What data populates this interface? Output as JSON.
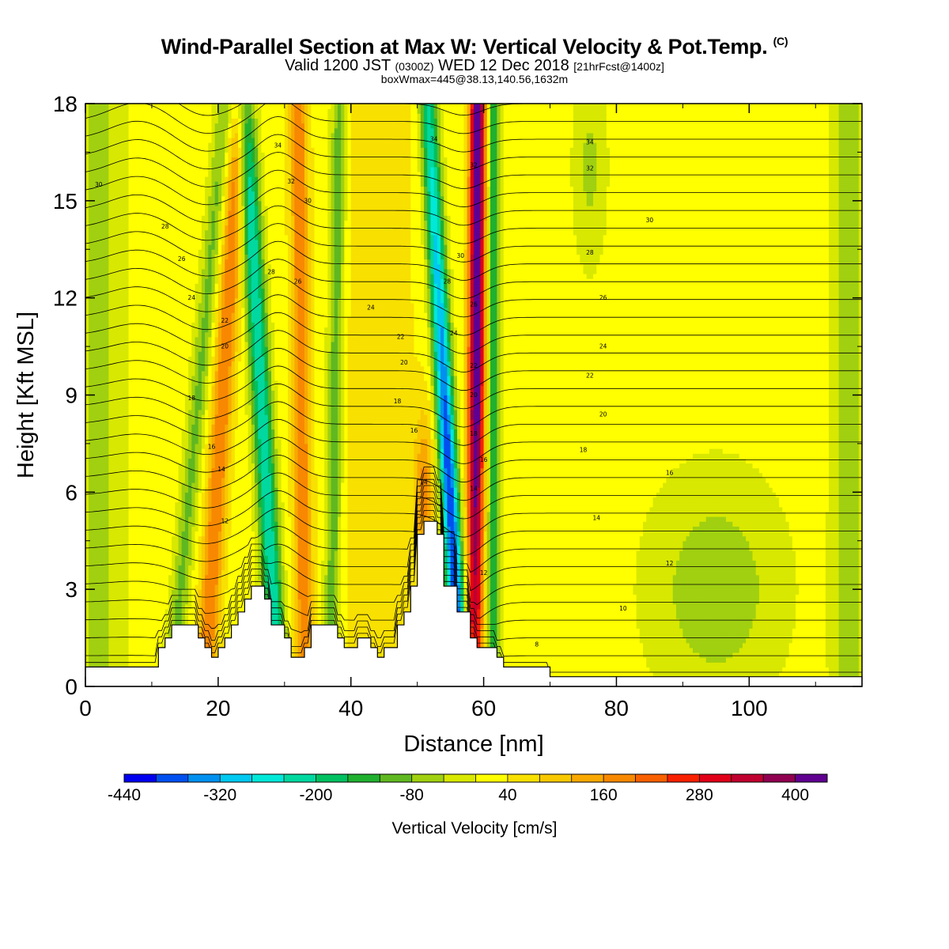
{
  "header": {
    "title": "Wind-Parallel Section at Max W: Vertical Velocity & Pot.Temp.",
    "title_mark": "(C)",
    "valid_prefix": "Valid 1200 JST",
    "valid_utc": "(0300Z)",
    "valid_date": "WED 12 Dec 2018",
    "forecast": "[21hrFcst@1400z]",
    "box_info": "boxWmax=445@38.13,140.56,1632m"
  },
  "chart_data": {
    "type": "heatmap",
    "xlabel": "Distance [nm]",
    "ylabel": "Height [Kft MSL]",
    "xlim": [
      0,
      117
    ],
    "ylim": [
      0,
      18
    ],
    "x_ticks": [
      0,
      20,
      40,
      60,
      80,
      100
    ],
    "y_ticks": [
      0,
      3,
      6,
      9,
      12,
      15,
      18
    ],
    "colorbar": {
      "label": "Vertical Velocity [cm/s]",
      "tick_labels": [
        "-440",
        "-320",
        "-200",
        "-80",
        "40",
        "160",
        "280",
        "400"
      ],
      "levels": [
        -440,
        -400,
        -360,
        -320,
        -280,
        -240,
        -200,
        -160,
        -120,
        -80,
        -40,
        0,
        40,
        80,
        120,
        160,
        200,
        240,
        280,
        320,
        360,
        400,
        440
      ],
      "colors": [
        "#0000f0",
        "#0050f0",
        "#0090f0",
        "#00c8f0",
        "#00e8d8",
        "#00d8a0",
        "#00c060",
        "#20b030",
        "#60b820",
        "#a0d010",
        "#d8e800",
        "#ffff00",
        "#f8e000",
        "#f8c800",
        "#f8a800",
        "#f88800",
        "#f86000",
        "#f82000",
        "#e00018",
        "#c00030",
        "#900050",
        "#600090"
      ]
    },
    "terrain_kft": [
      [
        0,
        0.6
      ],
      [
        11,
        0.6
      ],
      [
        11,
        1.2
      ],
      [
        12,
        1.2
      ],
      [
        12,
        1.5
      ],
      [
        13,
        1.5
      ],
      [
        13,
        1.9
      ],
      [
        17,
        1.9
      ],
      [
        17,
        1.5
      ],
      [
        18,
        1.5
      ],
      [
        18,
        1.2
      ],
      [
        19,
        1.2
      ],
      [
        19,
        0.9
      ],
      [
        20,
        0.9
      ],
      [
        20,
        1.2
      ],
      [
        21,
        1.2
      ],
      [
        21,
        1.5
      ],
      [
        22,
        1.5
      ],
      [
        22,
        1.9
      ],
      [
        23,
        1.9
      ],
      [
        23,
        2.3
      ],
      [
        24,
        2.3
      ],
      [
        24,
        2.7
      ],
      [
        25,
        2.7
      ],
      [
        25,
        3.1
      ],
      [
        27,
        3.1
      ],
      [
        27,
        2.7
      ],
      [
        28,
        2.7
      ],
      [
        28,
        1.9
      ],
      [
        30,
        1.9
      ],
      [
        30,
        1.5
      ],
      [
        31,
        1.5
      ],
      [
        31,
        0.9
      ],
      [
        33,
        0.9
      ],
      [
        33,
        1.2
      ],
      [
        34,
        1.2
      ],
      [
        34,
        1.9
      ],
      [
        38,
        1.9
      ],
      [
        38,
        1.5
      ],
      [
        39,
        1.5
      ],
      [
        39,
        1.2
      ],
      [
        41,
        1.2
      ],
      [
        41,
        1.5
      ],
      [
        43,
        1.5
      ],
      [
        43,
        1.2
      ],
      [
        44,
        1.2
      ],
      [
        44,
        0.9
      ],
      [
        45,
        0.9
      ],
      [
        45,
        1.2
      ],
      [
        47,
        1.2
      ],
      [
        47,
        1.9
      ],
      [
        48,
        1.9
      ],
      [
        48,
        2.3
      ],
      [
        49,
        2.3
      ],
      [
        49,
        3.1
      ],
      [
        50,
        3.1
      ],
      [
        50,
        4.7
      ],
      [
        51,
        4.7
      ],
      [
        51,
        5.1
      ],
      [
        53,
        5.1
      ],
      [
        53,
        4.7
      ],
      [
        54,
        4.7
      ],
      [
        54,
        3.1
      ],
      [
        56,
        3.1
      ],
      [
        56,
        2.3
      ],
      [
        58,
        2.3
      ],
      [
        58,
        1.5
      ],
      [
        59,
        1.5
      ],
      [
        59,
        1.2
      ],
      [
        62,
        1.2
      ],
      [
        62,
        0.9
      ],
      [
        63,
        0.9
      ],
      [
        63,
        0.6
      ],
      [
        70,
        0.6
      ],
      [
        70,
        0.3
      ],
      [
        117,
        0.3
      ]
    ],
    "theta_labels": [
      {
        "x": 2,
        "y": 15.5,
        "text": "30"
      },
      {
        "x": 12,
        "y": 14.2,
        "text": "28"
      },
      {
        "x": 14.5,
        "y": 13.2,
        "text": "26"
      },
      {
        "x": 16,
        "y": 12.0,
        "text": "24"
      },
      {
        "x": 21,
        "y": 11.3,
        "text": "22"
      },
      {
        "x": 21,
        "y": 10.5,
        "text": "20"
      },
      {
        "x": 16,
        "y": 8.9,
        "text": "18"
      },
      {
        "x": 19,
        "y": 7.4,
        "text": "16"
      },
      {
        "x": 20.5,
        "y": 6.7,
        "text": "14"
      },
      {
        "x": 21,
        "y": 5.1,
        "text": "12"
      },
      {
        "x": 29,
        "y": 16.7,
        "text": "34"
      },
      {
        "x": 31,
        "y": 15.6,
        "text": "32"
      },
      {
        "x": 33.5,
        "y": 15.0,
        "text": "30"
      },
      {
        "x": 28,
        "y": 12.8,
        "text": "28"
      },
      {
        "x": 32,
        "y": 12.5,
        "text": "26"
      },
      {
        "x": 43,
        "y": 11.7,
        "text": "24"
      },
      {
        "x": 47.5,
        "y": 10.8,
        "text": "22"
      },
      {
        "x": 48,
        "y": 10.0,
        "text": "20"
      },
      {
        "x": 47,
        "y": 8.8,
        "text": "18"
      },
      {
        "x": 49.5,
        "y": 7.9,
        "text": "16"
      },
      {
        "x": 51,
        "y": 6.3,
        "text": "14"
      },
      {
        "x": 52.5,
        "y": 16.9,
        "text": "34"
      },
      {
        "x": 58.5,
        "y": 16.1,
        "text": "32"
      },
      {
        "x": 56.5,
        "y": 13.3,
        "text": "30"
      },
      {
        "x": 54.5,
        "y": 12.5,
        "text": "28"
      },
      {
        "x": 58.5,
        "y": 11.8,
        "text": "26"
      },
      {
        "x": 55.5,
        "y": 10.9,
        "text": "24"
      },
      {
        "x": 58.5,
        "y": 9.9,
        "text": "22"
      },
      {
        "x": 58.5,
        "y": 9.0,
        "text": "20"
      },
      {
        "x": 58.5,
        "y": 7.8,
        "text": "18"
      },
      {
        "x": 60,
        "y": 7.0,
        "text": "16"
      },
      {
        "x": 58.5,
        "y": 6.1,
        "text": "14"
      },
      {
        "x": 60,
        "y": 3.5,
        "text": "12"
      },
      {
        "x": 68,
        "y": 1.3,
        "text": "8"
      },
      {
        "x": 76,
        "y": 16.8,
        "text": "34"
      },
      {
        "x": 76,
        "y": 16.0,
        "text": "32"
      },
      {
        "x": 85,
        "y": 14.4,
        "text": "30"
      },
      {
        "x": 76,
        "y": 13.4,
        "text": "28"
      },
      {
        "x": 78,
        "y": 12.0,
        "text": "26"
      },
      {
        "x": 78,
        "y": 10.5,
        "text": "24"
      },
      {
        "x": 76,
        "y": 9.6,
        "text": "22"
      },
      {
        "x": 78,
        "y": 8.4,
        "text": "20"
      },
      {
        "x": 75,
        "y": 7.3,
        "text": "18"
      },
      {
        "x": 88,
        "y": 6.6,
        "text": "16"
      },
      {
        "x": 77,
        "y": 5.2,
        "text": "14"
      },
      {
        "x": 88,
        "y": 3.8,
        "text": "12"
      },
      {
        "x": 81,
        "y": 2.4,
        "text": "10"
      }
    ]
  }
}
